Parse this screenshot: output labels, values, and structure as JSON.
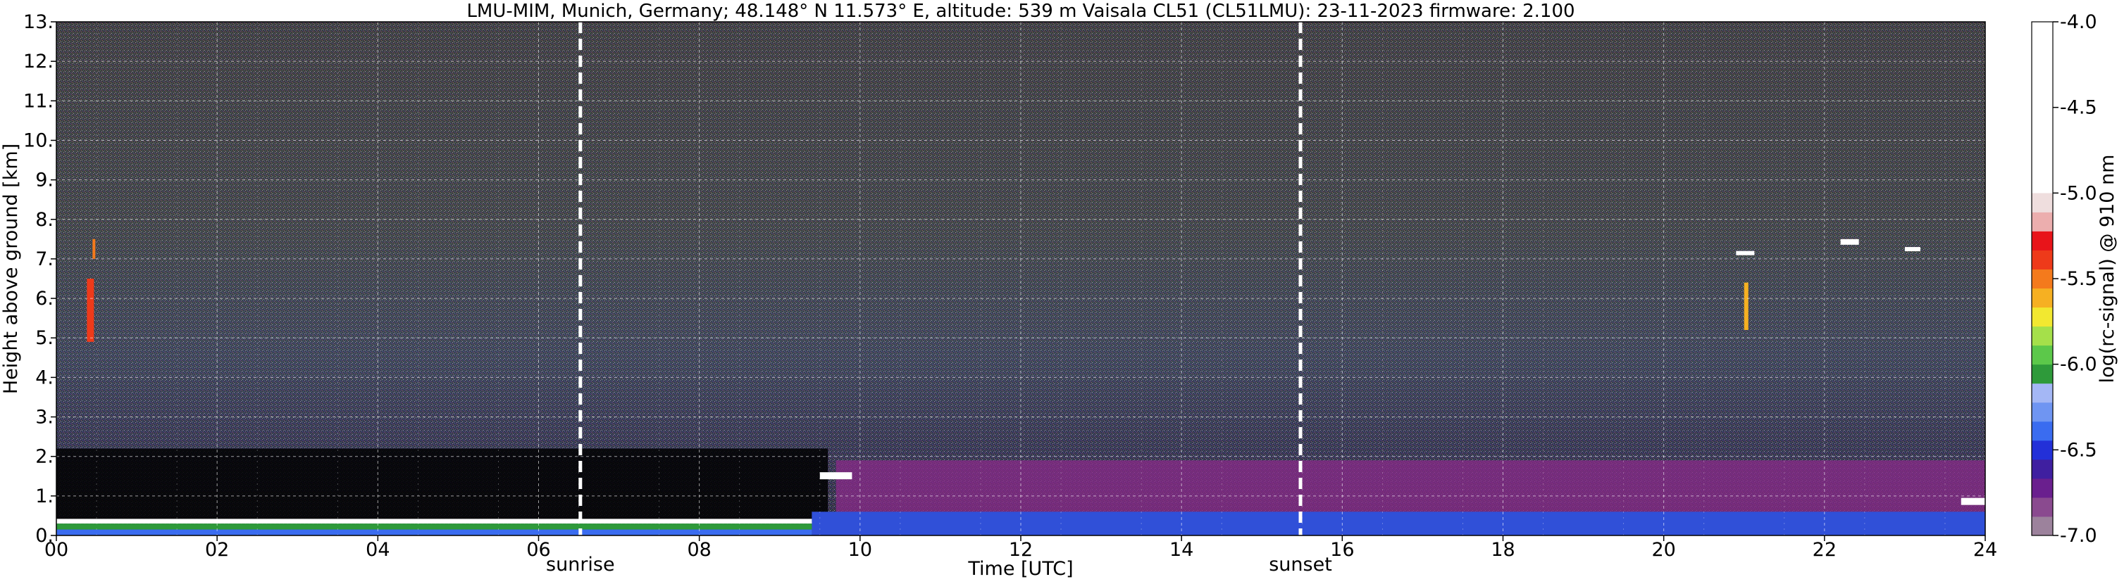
{
  "chart_data": {
    "type": "heatmap",
    "title": "LMU-MIM, Munich, Germany; 48.148° N 11.573° E, altitude: 539 m    Vaisala CL51 (CL51LMU): 23-11-2023    firmware: 2.100",
    "xlabel": "Time [UTC]",
    "ylabel": "Height above ground [km]",
    "xlim": [
      0,
      24
    ],
    "ylim": [
      0,
      13
    ],
    "x_ticks": [
      0,
      2,
      4,
      6,
      8,
      10,
      12,
      14,
      16,
      18,
      20,
      22,
      24
    ],
    "x_tick_labels": [
      "00",
      "02",
      "04",
      "06",
      "08",
      "10",
      "12",
      "14",
      "16",
      "18",
      "20",
      "22",
      "24"
    ],
    "y_ticks": [
      0,
      1,
      2,
      3,
      4,
      5,
      6,
      7,
      8,
      9,
      10,
      11,
      12,
      13
    ],
    "y_tick_labels": [
      "0.",
      "1.",
      "2.",
      "3.",
      "4.",
      "5.",
      "6.",
      "7.",
      "8.",
      "9.",
      "10.",
      "11.",
      "12.",
      "13."
    ],
    "grid": true,
    "events": [
      {
        "label": "sunrise",
        "time": 6.52
      },
      {
        "label": "sunset",
        "time": 15.48
      }
    ],
    "colorbar": {
      "label": "log(rc-signal) @ 910 nm",
      "range": [
        -7.0,
        -4.0
      ],
      "ticks": [
        -7.0,
        -6.5,
        -6.0,
        -5.5,
        -5.0,
        -4.5,
        -4.0
      ],
      "tick_labels": [
        "-7.0",
        "-6.5",
        "-6.0",
        "-5.5",
        "-5.0",
        "-4.5",
        "-4.0"
      ],
      "colors": [
        "#9c829c",
        "#8a4a8f",
        "#6a1f8e",
        "#3f1fa0",
        "#2330d8",
        "#3a6cf0",
        "#6f95f2",
        "#a4b7f5",
        "#2e9a3a",
        "#5cc84a",
        "#a5e04a",
        "#f2e830",
        "#f6b022",
        "#f47a1c",
        "#ee3a1a",
        "#e8141a",
        "#ecaeae",
        "#efdede",
        "#ffffff"
      ]
    },
    "background_colors": {
      "clear_air_low": "#000000",
      "aerosol_layer": "#3050d8",
      "evening_layer": "#8a2a8a"
    }
  }
}
